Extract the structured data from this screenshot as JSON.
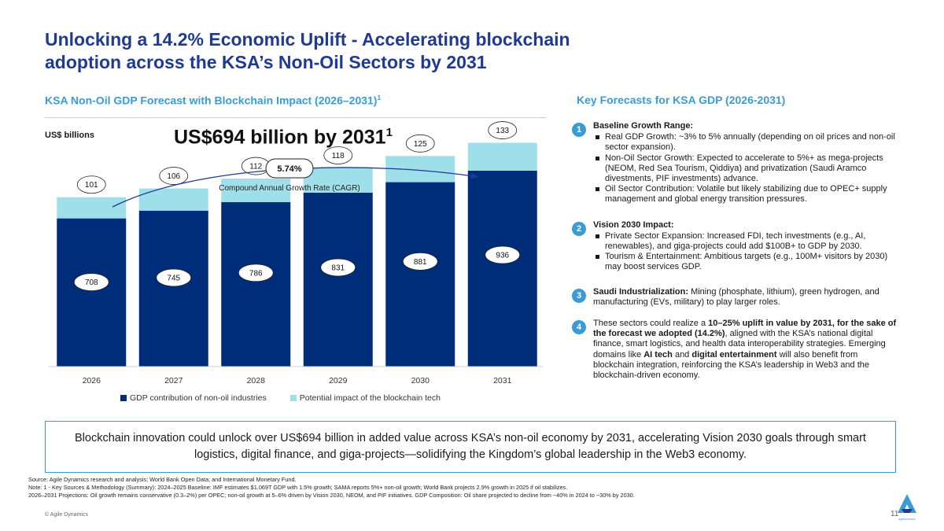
{
  "header": {
    "title": "Unlocking a 14.2% Economic Uplift - Accelerating blockchain adoption across the KSA’s Non-Oil Sectors by 2031"
  },
  "left_panel": {
    "subtitle": "KSA Non-Oil GDP Forecast with Blockchain Impact (2026–2031)",
    "subtitle_sup": "1",
    "unit": "US$ billions",
    "headline": "US$694 billion by 2031",
    "headline_sup": "1"
  },
  "chart_data": {
    "type": "bar",
    "stacked": true,
    "title": "KSA Non-Oil GDP Forecast with Blockchain Impact (2026–2031)",
    "ylabel": "US$ billions",
    "categories": [
      "2026",
      "2027",
      "2028",
      "2029",
      "2030",
      "2031"
    ],
    "series": [
      {
        "name": "GDP contribution of non-oil industries",
        "values": [
          708,
          745,
          786,
          831,
          881,
          936
        ],
        "color": "#002d7a"
      },
      {
        "name": "Potential impact of the blockchain tech",
        "values": [
          101,
          106,
          112,
          118,
          125,
          133
        ],
        "color": "#9edfea"
      }
    ],
    "ylim": [
      0,
      1150
    ],
    "cagr_value": "5.74%",
    "cagr_label": "Compound Annual Growth Rate (CAGR)",
    "legend_position": "bottom"
  },
  "right_panel": {
    "subtitle": "Key Forecasts for KSA GDP (2026-2031)",
    "items": [
      {
        "num": "1",
        "title": "Baseline Growth Range:",
        "bullets": [
          "Real GDP Growth: ~3% to 5% annually (depending on oil prices and non-oil sector expansion).",
          "Non-Oil Sector Growth: Expected to accelerate to 5%+ as mega-projects (NEOM, Red Sea Tourism, Qiddiya) and privatization (Saudi Aramco divestments, PIF investments) advance.",
          "Oil Sector Contribution: Volatile but likely stabilizing due to OPEC+ supply management and global energy transition pressures."
        ]
      },
      {
        "num": "2",
        "title": "Vision 2030 Impact:",
        "bullets": [
          "Private Sector Expansion: Increased FDI, tech investments (e.g., AI, renewables), and giga-projects could add $100B+ to GDP by 2030.",
          "Tourism & Entertainment: Ambitious targets (e.g., 100M+ visitors by 2030) may boost services GDP."
        ]
      },
      {
        "num": "3",
        "title": "Saudi Industrialization:",
        "text": " Mining (phosphate, lithium), green hydrogen, and manufacturing (EVs, military) to play larger roles."
      },
      {
        "num": "4",
        "p1": "These sectors could realize a ",
        "b1": "10–25% uplift in value by 2031, for the sake of the forecast we adopted (14.2%)",
        "p2": ", aligned with the KSA’s national digital finance, smart logistics, and health data interoperability strategies. Emerging domains like ",
        "b2": "AI tech",
        "p3": " and ",
        "b3": "digital entertainment",
        "p4": " will also benefit from blockchain integration, reinforcing the KSA’s leadership in Web3 and the blockchain-driven economy."
      }
    ]
  },
  "callout": {
    "text": "Blockchain innovation could unlock over US$694 billion in added value across KSA’s non-oil economy by 2031, accelerating Vision 2030 goals through smart logistics, digital finance, and giga-projects—solidifying the Kingdom’s global leadership in the Web3 economy."
  },
  "footer": {
    "source": "Source: Agile Dynamics research and analysis; World Bank Open Data; and International Monetary Fund.",
    "note1": "Note: 1 - Key Sources & Methodology (Summary): 2024–2025 Baseline: IMF estimates $1.069T GDP with 1.5% growth; SAMA reports 5%+ non-oil growth; World Bank projects 2.9% growth in 2025 if oil stabilizes.",
    "note2": "2026–2031 Projections: Oil growth remains conservative (0.3–2%) per OPEC; non-oil growth at 5–6% driven by Vision 2030, NEOM, and PIF initiatives. GDP Composition: Oil share projected to decline from ~40% in 2024 to ~30% by 2030.",
    "copyright": "© Agile Dynamics",
    "page": "11",
    "logo_text": "agiledynamics"
  },
  "colors": {
    "title": "#1f3a93",
    "accent": "#3a9bd5",
    "bar_dark": "#002d7a",
    "bar_light": "#9edfea"
  }
}
